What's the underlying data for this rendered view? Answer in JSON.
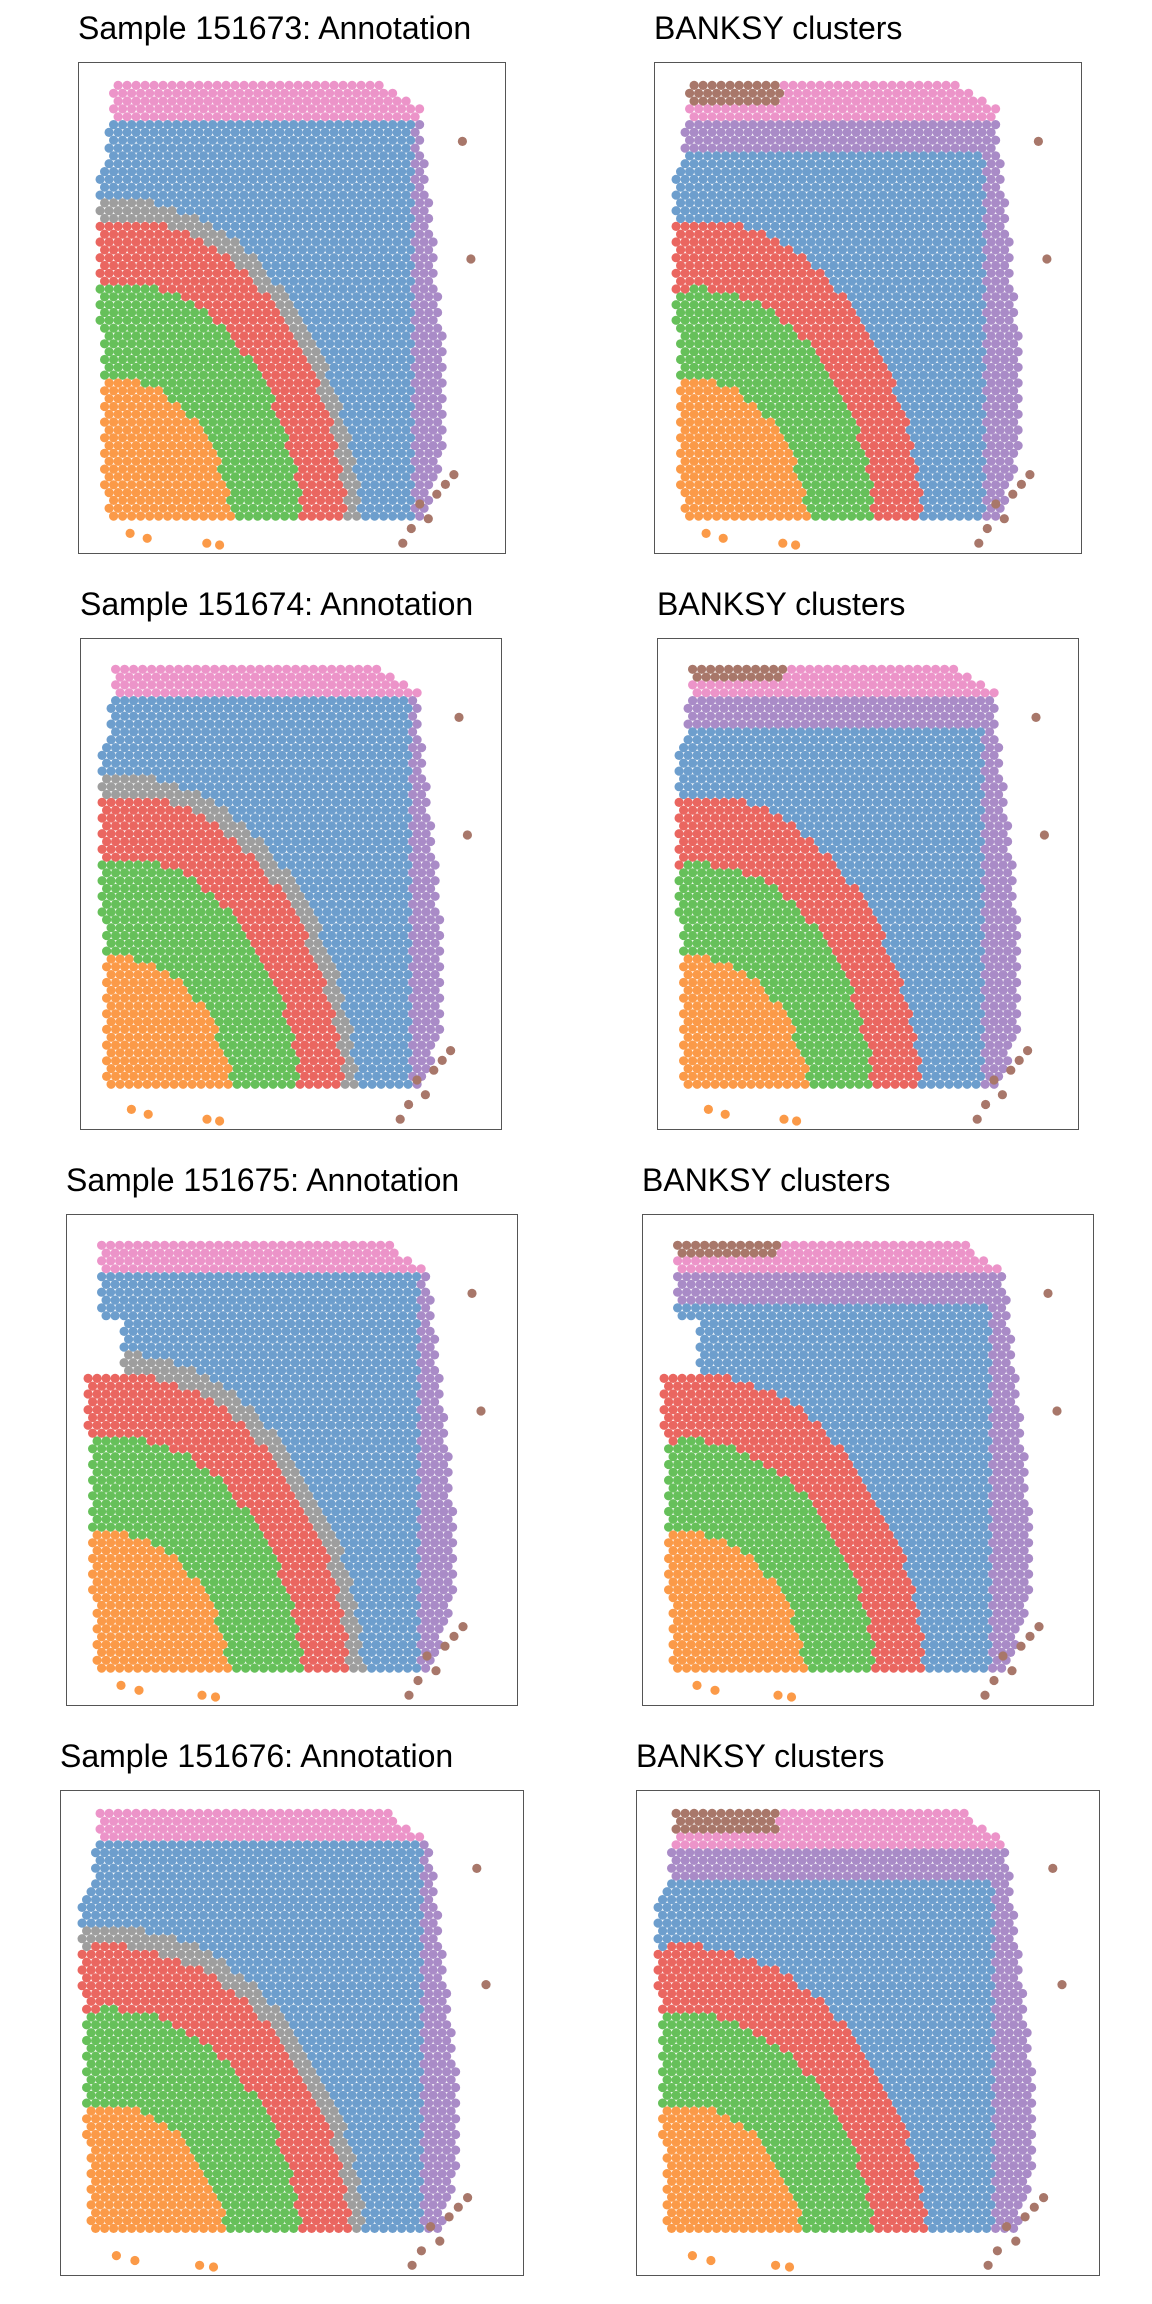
{
  "colors": {
    "orange": "#FB9A48",
    "green": "#66C05A",
    "red": "#EA6660",
    "gray": "#9E9E9E",
    "blue": "#6D9ECD",
    "purple": "#A98BC7",
    "pink": "#EC94C9",
    "brown": "#A8776A"
  },
  "rows": [
    {
      "annotation_title": "Sample 151673: Annotation",
      "banksy_title": "BANKSY clusters"
    },
    {
      "annotation_title": "Sample 151674: Annotation",
      "banksy_title": "BANKSY clusters"
    },
    {
      "annotation_title": "Sample 151675: Annotation",
      "banksy_title": "BANKSY clusters"
    },
    {
      "annotation_title": "Sample 151676: Annotation",
      "banksy_title": "BANKSY clusters"
    }
  ]
}
